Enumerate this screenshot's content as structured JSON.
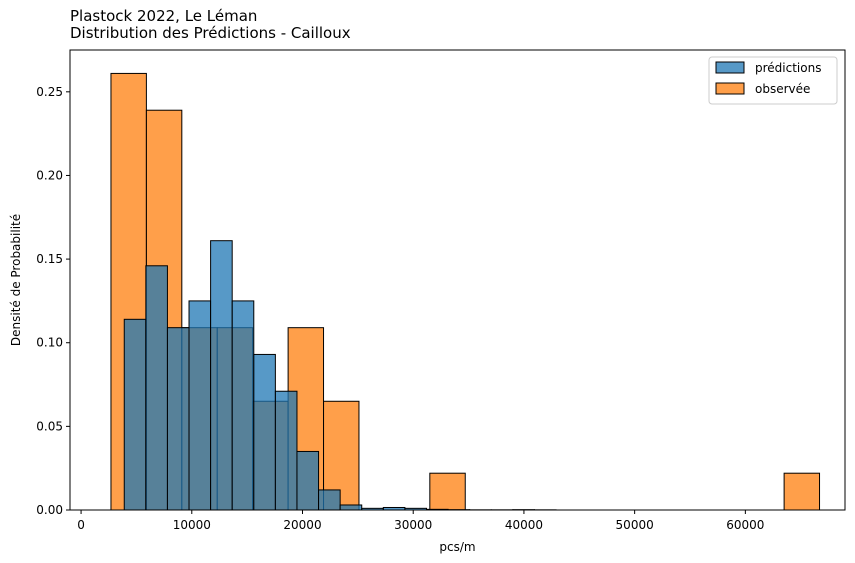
{
  "chart_data": {
    "type": "bar",
    "title": "Plastock 2022, Le Léman",
    "subtitle": "Distribution des Prédictions - Cailloux",
    "xlabel": "pcs/m",
    "ylabel": "Densité de Probabilité",
    "xlim": [
      -1000,
      69000
    ],
    "ylim": [
      0,
      0.275
    ],
    "x_ticks": [
      0,
      10000,
      20000,
      30000,
      40000,
      50000,
      60000
    ],
    "y_ticks": [
      0.0,
      0.05,
      0.1,
      0.15,
      0.2,
      0.25
    ],
    "x_tick_labels": [
      "0",
      "10000",
      "20000",
      "30000",
      "40000",
      "50000",
      "60000"
    ],
    "y_tick_labels": [
      "0.00",
      "0.05",
      "0.10",
      "0.15",
      "0.20",
      "0.25"
    ],
    "legend_position": "top-right",
    "series": [
      {
        "name": "prédictions",
        "color": "#1f77b4",
        "bins": [
          {
            "x0": 3900,
            "x1": 5850,
            "value": 0.114
          },
          {
            "x0": 5850,
            "x1": 7800,
            "value": 0.146
          },
          {
            "x0": 7800,
            "x1": 9750,
            "value": 0.109
          },
          {
            "x0": 9750,
            "x1": 11700,
            "value": 0.125
          },
          {
            "x0": 11700,
            "x1": 13650,
            "value": 0.161
          },
          {
            "x0": 13650,
            "x1": 15600,
            "value": 0.125
          },
          {
            "x0": 15600,
            "x1": 17550,
            "value": 0.093
          },
          {
            "x0": 17550,
            "x1": 19500,
            "value": 0.071
          },
          {
            "x0": 19500,
            "x1": 21450,
            "value": 0.035
          },
          {
            "x0": 21450,
            "x1": 23400,
            "value": 0.012
          },
          {
            "x0": 23400,
            "x1": 25350,
            "value": 0.003
          },
          {
            "x0": 25350,
            "x1": 27300,
            "value": 0.001
          },
          {
            "x0": 27300,
            "x1": 29250,
            "value": 0.0015
          },
          {
            "x0": 29250,
            "x1": 31200,
            "value": 0.001
          },
          {
            "x0": 31200,
            "x1": 33150,
            "value": 0.0004
          },
          {
            "x0": 33150,
            "x1": 35100,
            "value": 0.0002
          },
          {
            "x0": 35100,
            "x1": 37050,
            "value": 0.0001
          },
          {
            "x0": 37050,
            "x1": 39000,
            "value": 0.0001
          },
          {
            "x0": 39000,
            "x1": 40950,
            "value": 0.0002
          },
          {
            "x0": 40950,
            "x1": 42900,
            "value": 0.0001
          }
        ]
      },
      {
        "name": "observée",
        "color": "#ff7f0e",
        "bins": [
          {
            "x0": 2700,
            "x1": 5900,
            "value": 0.261
          },
          {
            "x0": 5900,
            "x1": 9100,
            "value": 0.239
          },
          {
            "x0": 9100,
            "x1": 12300,
            "value": 0.109
          },
          {
            "x0": 12300,
            "x1": 15500,
            "value": 0.109
          },
          {
            "x0": 15500,
            "x1": 18700,
            "value": 0.065
          },
          {
            "x0": 18700,
            "x1": 21900,
            "value": 0.109
          },
          {
            "x0": 21900,
            "x1": 25100,
            "value": 0.065
          },
          {
            "x0": 31500,
            "x1": 34700,
            "value": 0.022
          },
          {
            "x0": 63500,
            "x1": 66700,
            "value": 0.022
          }
        ]
      }
    ]
  }
}
